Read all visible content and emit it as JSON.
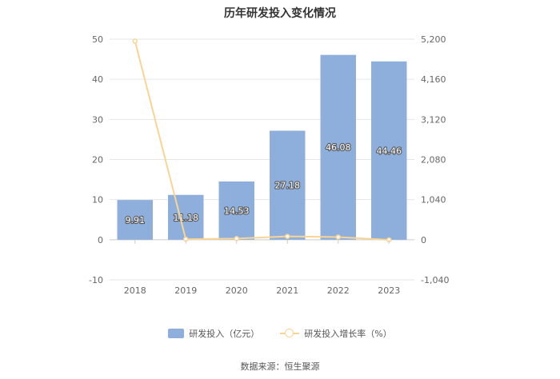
{
  "chart_data": {
    "type": "bar",
    "title": "历年研发投入变化情况",
    "categories": [
      "2018",
      "2019",
      "2020",
      "2021",
      "2022",
      "2023"
    ],
    "series": [
      {
        "name": "研发投入（亿元）",
        "type": "bar",
        "axis": "left",
        "color": "#8eaedb",
        "values": [
          9.91,
          11.18,
          14.53,
          27.18,
          46.08,
          44.46
        ],
        "labels": [
          "9.91",
          "11.18",
          "14.53",
          "27.18",
          "46.08",
          "44.46"
        ]
      },
      {
        "name": "研发投入增长率（%）",
        "type": "line",
        "axis": "right",
        "color": "#f9d595",
        "values": [
          5150,
          12.8,
          30.0,
          87.1,
          69.5,
          -3.5
        ]
      }
    ],
    "y_left": {
      "ylim": [
        -10,
        50
      ],
      "ticks": [
        "-10",
        "0",
        "10",
        "20",
        "30",
        "40",
        "50"
      ]
    },
    "y_right": {
      "ylim": [
        -1040,
        5200
      ],
      "ticks": [
        "-1,040",
        "0",
        "1,040",
        "2,080",
        "3,120",
        "4,160",
        "5,200"
      ]
    },
    "grid": true,
    "legend_position": "bottom"
  },
  "source": "数据来源：恒生聚源"
}
